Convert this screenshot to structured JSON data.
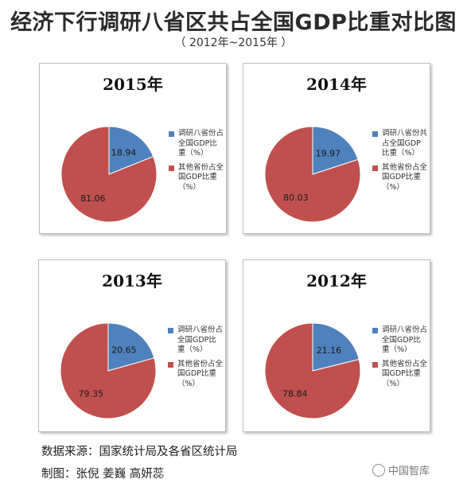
{
  "header": {
    "title": "经济下行调研八省区共占全国GDP比重对比图",
    "subtitle": "（ 2012年~2015年 ）"
  },
  "colors": {
    "share": "#4f81bd",
    "other": "#c0504d"
  },
  "chart_data": [
    {
      "type": "pie",
      "title": "2015年",
      "slices": [
        {
          "label": "调研八省份占全国GDP比重（%）",
          "value": 18.94,
          "color": "#4f81bd"
        },
        {
          "label": "其他省份占全国GDP比重（%）",
          "value": 81.06,
          "color": "#c0504d"
        }
      ]
    },
    {
      "type": "pie",
      "title": "2014年",
      "slices": [
        {
          "label": "调研八省份共占全国GDP比重（%）",
          "value": 19.97,
          "color": "#4f81bd"
        },
        {
          "label": "其他省份占全国GDP比重（%）",
          "value": 80.03,
          "color": "#c0504d"
        }
      ]
    },
    {
      "type": "pie",
      "title": "2013年",
      "slices": [
        {
          "label": "调研八省份占全国GDP比重（%）",
          "value": 20.65,
          "color": "#4f81bd"
        },
        {
          "label": "其他省份占全国GDP比重（%）",
          "value": 79.35,
          "color": "#c0504d"
        }
      ]
    },
    {
      "type": "pie",
      "title": "2012年",
      "slices": [
        {
          "label": "调研八省份占全国GDP比重（%）",
          "value": 21.16,
          "color": "#4f81bd"
        },
        {
          "label": "其他省份占全国GDP比重（%）",
          "value": 78.84,
          "color": "#c0504d"
        }
      ]
    }
  ],
  "footer": {
    "source": "数据来源：国家统计局及各省区统计局",
    "credit": "制图：张倪 姜巍 高妍蕊",
    "watermark": "中国智库"
  }
}
